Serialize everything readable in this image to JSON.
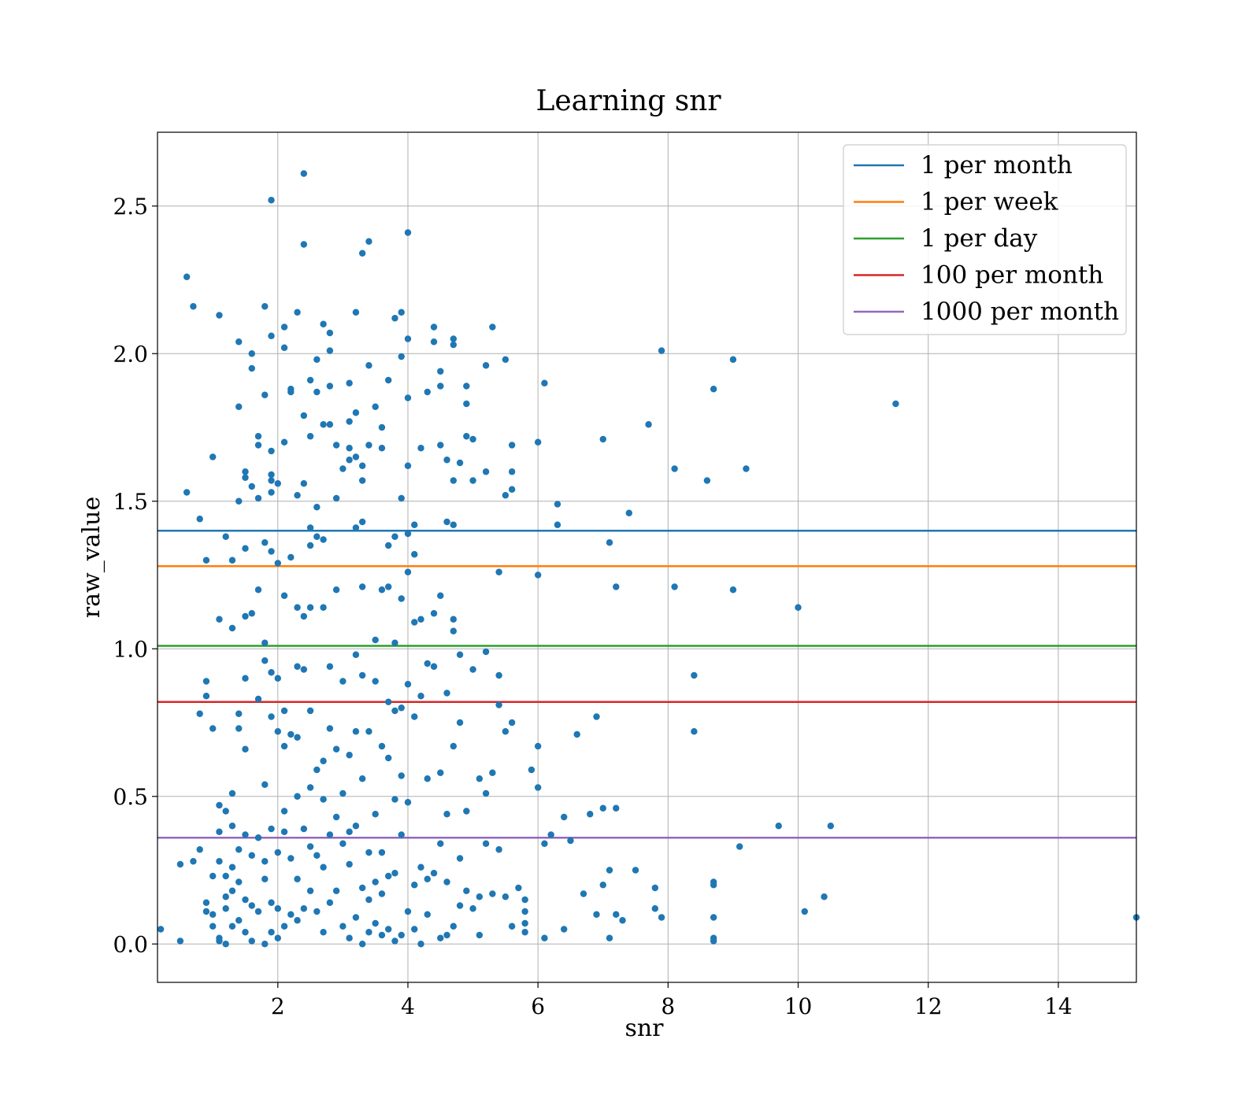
{
  "chart_data": {
    "type": "scatter",
    "title": "Learning snr",
    "xlabel": "snr",
    "ylabel": "raw_value",
    "xlim": [
      0.15,
      15.2
    ],
    "ylim": [
      -0.13,
      2.75
    ],
    "xticks": [
      2,
      4,
      6,
      8,
      10,
      12,
      14
    ],
    "yticks": [
      0.0,
      0.5,
      1.0,
      1.5,
      2.0,
      2.5
    ],
    "grid": true,
    "legend_position": "top-right",
    "scatter_color": "#1f77b4",
    "hlines": [
      {
        "name": "1 per month",
        "y": 1.4,
        "color": "#1f77b4"
      },
      {
        "name": "1 per week",
        "y": 1.28,
        "color": "#ff7f0e"
      },
      {
        "name": "1 per day",
        "y": 1.01,
        "color": "#2ca02c"
      },
      {
        "name": "100 per month",
        "y": 0.82,
        "color": "#d62728"
      },
      {
        "name": "1000 per month",
        "y": 0.36,
        "color": "#9467bd"
      }
    ],
    "points": [
      [
        0.2,
        0.05
      ],
      [
        0.5,
        0.01
      ],
      [
        0.5,
        0.27
      ],
      [
        0.6,
        2.26
      ],
      [
        0.6,
        1.53
      ],
      [
        0.7,
        2.16
      ],
      [
        0.7,
        0.28
      ],
      [
        0.8,
        0.78
      ],
      [
        0.8,
        0.32
      ],
      [
        0.8,
        1.44
      ],
      [
        0.9,
        1.3
      ],
      [
        0.9,
        0.89
      ],
      [
        0.9,
        0.84
      ],
      [
        0.9,
        0.11
      ],
      [
        0.9,
        0.14
      ],
      [
        1.0,
        1.65
      ],
      [
        1.0,
        0.73
      ],
      [
        1.0,
        0.23
      ],
      [
        1.0,
        0.1
      ],
      [
        1.0,
        0.06
      ],
      [
        1.1,
        2.13
      ],
      [
        1.1,
        1.1
      ],
      [
        1.1,
        0.47
      ],
      [
        1.1,
        0.38
      ],
      [
        1.1,
        0.28
      ],
      [
        1.1,
        0.02
      ],
      [
        1.1,
        0.01
      ],
      [
        1.2,
        1.38
      ],
      [
        1.2,
        0.45
      ],
      [
        1.2,
        0.23
      ],
      [
        1.2,
        0.16
      ],
      [
        1.2,
        0.12
      ],
      [
        1.2,
        0.0
      ],
      [
        1.3,
        1.3
      ],
      [
        1.3,
        0.4
      ],
      [
        1.3,
        0.26
      ],
      [
        1.3,
        0.18
      ],
      [
        1.3,
        0.06
      ],
      [
        1.3,
        1.07
      ],
      [
        1.3,
        0.51
      ],
      [
        1.4,
        2.04
      ],
      [
        1.4,
        1.82
      ],
      [
        1.4,
        1.5
      ],
      [
        1.4,
        0.78
      ],
      [
        1.4,
        0.73
      ],
      [
        1.4,
        0.32
      ],
      [
        1.4,
        0.21
      ],
      [
        1.4,
        0.08
      ],
      [
        1.5,
        1.6
      ],
      [
        1.5,
        1.58
      ],
      [
        1.5,
        1.34
      ],
      [
        1.5,
        1.11
      ],
      [
        1.5,
        0.9
      ],
      [
        1.5,
        0.66
      ],
      [
        1.5,
        0.37
      ],
      [
        1.5,
        0.15
      ],
      [
        1.5,
        0.04
      ],
      [
        1.6,
        2.0
      ],
      [
        1.6,
        1.95
      ],
      [
        1.6,
        1.55
      ],
      [
        1.6,
        1.12
      ],
      [
        1.6,
        0.3
      ],
      [
        1.6,
        0.13
      ],
      [
        1.6,
        0.01
      ],
      [
        1.7,
        1.72
      ],
      [
        1.7,
        1.69
      ],
      [
        1.7,
        1.51
      ],
      [
        1.7,
        1.2
      ],
      [
        1.7,
        0.83
      ],
      [
        1.7,
        0.36
      ],
      [
        1.7,
        0.11
      ],
      [
        1.8,
        2.16
      ],
      [
        1.8,
        1.86
      ],
      [
        1.8,
        1.36
      ],
      [
        1.8,
        1.02
      ],
      [
        1.8,
        0.96
      ],
      [
        1.8,
        0.54
      ],
      [
        1.8,
        0.28
      ],
      [
        1.8,
        0.22
      ],
      [
        1.8,
        0.0
      ],
      [
        1.9,
        2.52
      ],
      [
        1.9,
        2.06
      ],
      [
        1.9,
        1.67
      ],
      [
        1.9,
        1.59
      ],
      [
        1.9,
        1.57
      ],
      [
        1.9,
        1.53
      ],
      [
        1.9,
        1.33
      ],
      [
        1.9,
        0.92
      ],
      [
        1.9,
        0.77
      ],
      [
        1.9,
        0.39
      ],
      [
        1.9,
        0.14
      ],
      [
        1.9,
        0.04
      ],
      [
        2.0,
        1.56
      ],
      [
        2.0,
        1.29
      ],
      [
        2.0,
        0.9
      ],
      [
        2.0,
        0.72
      ],
      [
        2.0,
        0.31
      ],
      [
        2.0,
        0.12
      ],
      [
        2.0,
        0.02
      ],
      [
        2.1,
        2.09
      ],
      [
        2.1,
        2.02
      ],
      [
        2.1,
        1.7
      ],
      [
        2.1,
        1.18
      ],
      [
        2.1,
        0.79
      ],
      [
        2.1,
        0.67
      ],
      [
        2.1,
        0.45
      ],
      [
        2.1,
        0.38
      ],
      [
        2.1,
        0.06
      ],
      [
        2.2,
        1.88
      ],
      [
        2.2,
        1.87
      ],
      [
        2.2,
        1.31
      ],
      [
        2.2,
        0.71
      ],
      [
        2.2,
        0.29
      ],
      [
        2.2,
        0.1
      ],
      [
        2.3,
        2.14
      ],
      [
        2.3,
        1.52
      ],
      [
        2.3,
        1.14
      ],
      [
        2.3,
        0.94
      ],
      [
        2.3,
        0.7
      ],
      [
        2.3,
        0.5
      ],
      [
        2.3,
        0.22
      ],
      [
        2.3,
        0.08
      ],
      [
        2.4,
        2.37
      ],
      [
        2.4,
        2.61
      ],
      [
        2.4,
        1.79
      ],
      [
        2.4,
        1.56
      ],
      [
        2.4,
        1.11
      ],
      [
        2.4,
        0.93
      ],
      [
        2.4,
        0.39
      ],
      [
        2.4,
        0.12
      ],
      [
        2.5,
        1.91
      ],
      [
        2.5,
        1.72
      ],
      [
        2.5,
        1.41
      ],
      [
        2.5,
        1.35
      ],
      [
        2.5,
        1.14
      ],
      [
        2.5,
        0.79
      ],
      [
        2.5,
        0.53
      ],
      [
        2.5,
        0.33
      ],
      [
        2.5,
        0.18
      ],
      [
        2.6,
        1.98
      ],
      [
        2.6,
        1.87
      ],
      [
        2.6,
        1.48
      ],
      [
        2.6,
        1.38
      ],
      [
        2.6,
        0.59
      ],
      [
        2.6,
        0.3
      ],
      [
        2.6,
        0.11
      ],
      [
        2.7,
        2.1
      ],
      [
        2.7,
        1.76
      ],
      [
        2.7,
        1.37
      ],
      [
        2.7,
        1.14
      ],
      [
        2.7,
        0.62
      ],
      [
        2.7,
        0.49
      ],
      [
        2.7,
        0.26
      ],
      [
        2.7,
        0.04
      ],
      [
        2.8,
        2.07
      ],
      [
        2.8,
        2.01
      ],
      [
        2.8,
        1.89
      ],
      [
        2.8,
        1.76
      ],
      [
        2.8,
        0.94
      ],
      [
        2.8,
        0.73
      ],
      [
        2.8,
        0.37
      ],
      [
        2.8,
        0.14
      ],
      [
        2.9,
        1.69
      ],
      [
        2.9,
        1.51
      ],
      [
        2.9,
        1.2
      ],
      [
        2.9,
        0.66
      ],
      [
        2.9,
        0.43
      ],
      [
        2.9,
        0.18
      ],
      [
        3.0,
        1.61
      ],
      [
        3.0,
        0.89
      ],
      [
        3.0,
        0.51
      ],
      [
        3.0,
        0.34
      ],
      [
        3.0,
        0.06
      ],
      [
        3.1,
        1.9
      ],
      [
        3.1,
        1.77
      ],
      [
        3.1,
        1.68
      ],
      [
        3.1,
        1.64
      ],
      [
        3.1,
        0.64
      ],
      [
        3.1,
        0.38
      ],
      [
        3.1,
        0.27
      ],
      [
        3.1,
        0.02
      ],
      [
        3.2,
        2.14
      ],
      [
        3.2,
        1.8
      ],
      [
        3.2,
        1.65
      ],
      [
        3.2,
        1.41
      ],
      [
        3.2,
        0.98
      ],
      [
        3.2,
        0.72
      ],
      [
        3.2,
        0.4
      ],
      [
        3.2,
        0.09
      ],
      [
        3.3,
        2.34
      ],
      [
        3.3,
        1.62
      ],
      [
        3.3,
        1.57
      ],
      [
        3.3,
        1.43
      ],
      [
        3.3,
        1.21
      ],
      [
        3.3,
        0.91
      ],
      [
        3.3,
        0.56
      ],
      [
        3.3,
        0.19
      ],
      [
        3.3,
        0.0
      ],
      [
        3.4,
        2.38
      ],
      [
        3.4,
        1.96
      ],
      [
        3.4,
        1.69
      ],
      [
        3.4,
        0.72
      ],
      [
        3.4,
        0.31
      ],
      [
        3.4,
        0.15
      ],
      [
        3.4,
        0.04
      ],
      [
        3.5,
        1.82
      ],
      [
        3.5,
        1.03
      ],
      [
        3.5,
        0.89
      ],
      [
        3.5,
        0.44
      ],
      [
        3.5,
        0.21
      ],
      [
        3.5,
        0.07
      ],
      [
        3.6,
        1.75
      ],
      [
        3.6,
        1.68
      ],
      [
        3.6,
        1.2
      ],
      [
        3.6,
        0.67
      ],
      [
        3.6,
        0.31
      ],
      [
        3.6,
        0.17
      ],
      [
        3.6,
        0.03
      ],
      [
        3.7,
        1.91
      ],
      [
        3.7,
        1.35
      ],
      [
        3.7,
        1.21
      ],
      [
        3.7,
        0.82
      ],
      [
        3.7,
        0.63
      ],
      [
        3.7,
        0.23
      ],
      [
        3.7,
        0.05
      ],
      [
        3.8,
        2.12
      ],
      [
        3.8,
        1.38
      ],
      [
        3.8,
        1.02
      ],
      [
        3.8,
        0.79
      ],
      [
        3.8,
        0.49
      ],
      [
        3.8,
        0.24
      ],
      [
        3.8,
        0.01
      ],
      [
        3.9,
        2.14
      ],
      [
        3.9,
        1.99
      ],
      [
        3.9,
        1.51
      ],
      [
        3.9,
        1.17
      ],
      [
        3.9,
        0.8
      ],
      [
        3.9,
        0.57
      ],
      [
        3.9,
        0.37
      ],
      [
        3.9,
        0.03
      ],
      [
        4.0,
        2.41
      ],
      [
        4.0,
        2.05
      ],
      [
        4.0,
        1.85
      ],
      [
        4.0,
        1.62
      ],
      [
        4.0,
        1.39
      ],
      [
        4.0,
        1.26
      ],
      [
        4.0,
        0.88
      ],
      [
        4.0,
        0.48
      ],
      [
        4.0,
        0.11
      ],
      [
        4.1,
        1.42
      ],
      [
        4.1,
        1.32
      ],
      [
        4.1,
        1.09
      ],
      [
        4.1,
        0.77
      ],
      [
        4.1,
        0.2
      ],
      [
        4.1,
        0.05
      ],
      [
        4.2,
        1.68
      ],
      [
        4.2,
        1.1
      ],
      [
        4.2,
        0.84
      ],
      [
        4.2,
        0.26
      ],
      [
        4.2,
        0.0
      ],
      [
        4.3,
        1.87
      ],
      [
        4.3,
        0.95
      ],
      [
        4.3,
        0.56
      ],
      [
        4.3,
        0.22
      ],
      [
        4.3,
        0.1
      ],
      [
        4.4,
        2.09
      ],
      [
        4.4,
        2.04
      ],
      [
        4.4,
        1.12
      ],
      [
        4.4,
        0.94
      ],
      [
        4.4,
        0.24
      ],
      [
        4.5,
        1.94
      ],
      [
        4.5,
        1.89
      ],
      [
        4.5,
        1.69
      ],
      [
        4.5,
        1.18
      ],
      [
        4.5,
        0.58
      ],
      [
        4.5,
        0.34
      ],
      [
        4.5,
        0.02
      ],
      [
        4.6,
        1.64
      ],
      [
        4.6,
        1.43
      ],
      [
        4.6,
        0.85
      ],
      [
        4.6,
        0.44
      ],
      [
        4.6,
        0.21
      ],
      [
        4.6,
        0.03
      ],
      [
        4.7,
        2.05
      ],
      [
        4.7,
        2.03
      ],
      [
        4.7,
        1.57
      ],
      [
        4.7,
        1.42
      ],
      [
        4.7,
        1.1
      ],
      [
        4.7,
        1.06
      ],
      [
        4.7,
        0.67
      ],
      [
        4.7,
        0.06
      ],
      [
        4.8,
        1.63
      ],
      [
        4.8,
        0.98
      ],
      [
        4.8,
        0.75
      ],
      [
        4.8,
        0.29
      ],
      [
        4.8,
        0.13
      ],
      [
        4.9,
        1.89
      ],
      [
        4.9,
        1.83
      ],
      [
        4.9,
        1.72
      ],
      [
        4.9,
        0.45
      ],
      [
        4.9,
        0.18
      ],
      [
        5.0,
        1.71
      ],
      [
        5.0,
        1.57
      ],
      [
        5.0,
        0.93
      ],
      [
        5.0,
        0.12
      ],
      [
        5.1,
        0.56
      ],
      [
        5.1,
        0.16
      ],
      [
        5.1,
        0.03
      ],
      [
        5.2,
        1.96
      ],
      [
        5.2,
        1.6
      ],
      [
        5.2,
        0.99
      ],
      [
        5.2,
        0.51
      ],
      [
        5.2,
        0.34
      ],
      [
        5.3,
        2.09
      ],
      [
        5.3,
        0.58
      ],
      [
        5.3,
        0.17
      ],
      [
        5.4,
        1.26
      ],
      [
        5.4,
        0.91
      ],
      [
        5.4,
        0.81
      ],
      [
        5.4,
        0.32
      ],
      [
        5.5,
        1.98
      ],
      [
        5.5,
        1.52
      ],
      [
        5.5,
        0.72
      ],
      [
        5.5,
        0.16
      ],
      [
        5.6,
        1.69
      ],
      [
        5.6,
        1.54
      ],
      [
        5.6,
        1.6
      ],
      [
        5.6,
        0.75
      ],
      [
        5.6,
        0.06
      ],
      [
        5.7,
        0.19
      ],
      [
        5.8,
        0.15
      ],
      [
        5.8,
        0.11
      ],
      [
        5.8,
        0.07
      ],
      [
        5.8,
        0.04
      ],
      [
        5.9,
        0.59
      ],
      [
        6.0,
        0.53
      ],
      [
        6.0,
        1.25
      ],
      [
        6.0,
        1.7
      ],
      [
        6.0,
        0.67
      ],
      [
        6.1,
        0.34
      ],
      [
        6.1,
        1.9
      ],
      [
        6.1,
        0.02
      ],
      [
        6.2,
        0.37
      ],
      [
        6.3,
        1.49
      ],
      [
        6.3,
        1.42
      ],
      [
        6.4,
        0.43
      ],
      [
        6.4,
        0.05
      ],
      [
        6.5,
        0.35
      ],
      [
        6.6,
        0.71
      ],
      [
        6.7,
        0.17
      ],
      [
        6.8,
        0.44
      ],
      [
        6.9,
        0.1
      ],
      [
        6.9,
        0.77
      ],
      [
        7.0,
        0.2
      ],
      [
        7.0,
        1.71
      ],
      [
        7.0,
        0.46
      ],
      [
        7.1,
        0.25
      ],
      [
        7.1,
        0.02
      ],
      [
        7.1,
        1.36
      ],
      [
        7.2,
        1.21
      ],
      [
        7.2,
        0.46
      ],
      [
        7.2,
        0.1
      ],
      [
        7.3,
        0.08
      ],
      [
        7.4,
        1.46
      ],
      [
        7.5,
        0.25
      ],
      [
        7.7,
        1.76
      ],
      [
        7.8,
        0.12
      ],
      [
        7.8,
        0.19
      ],
      [
        7.9,
        0.09
      ],
      [
        7.9,
        2.01
      ],
      [
        8.1,
        1.21
      ],
      [
        8.1,
        1.61
      ],
      [
        8.4,
        0.91
      ],
      [
        8.4,
        0.72
      ],
      [
        8.6,
        1.57
      ],
      [
        8.7,
        0.09
      ],
      [
        8.7,
        0.21
      ],
      [
        8.7,
        0.2
      ],
      [
        8.7,
        0.02
      ],
      [
        8.7,
        0.01
      ],
      [
        8.7,
        1.88
      ],
      [
        9.0,
        1.98
      ],
      [
        9.0,
        1.2
      ],
      [
        9.1,
        0.33
      ],
      [
        9.2,
        1.61
      ],
      [
        9.7,
        0.4
      ],
      [
        10.0,
        1.14
      ],
      [
        10.1,
        0.11
      ],
      [
        10.4,
        0.16
      ],
      [
        10.5,
        0.4
      ],
      [
        11.5,
        1.83
      ],
      [
        15.2,
        0.09
      ]
    ]
  }
}
